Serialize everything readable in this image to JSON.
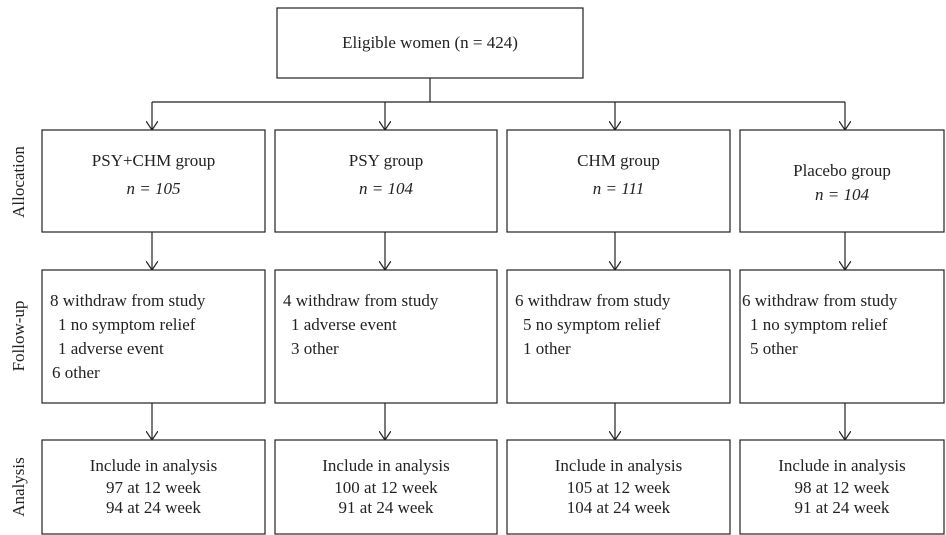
{
  "header": {
    "label": "Eligible women (n = 424)"
  },
  "stages": [
    "Allocation",
    "Follow-up",
    "Analysis"
  ],
  "groups": [
    {
      "name": "PSY+CHM group",
      "n": "n = 105",
      "followup": [
        "8 withdraw from study",
        "1 no symptom relief",
        "1 adverse event",
        "6 other"
      ],
      "analysis": [
        "Include in analysis",
        "97 at 12 week",
        "94 at 24 week"
      ]
    },
    {
      "name": "PSY group",
      "n": "n = 104",
      "followup": [
        "4 withdraw from study",
        "1 adverse event",
        "3 other"
      ],
      "analysis": [
        "Include in analysis",
        "100 at 12 week",
        "91 at 24 week"
      ]
    },
    {
      "name": "CHM group",
      "n": "n = 111",
      "followup": [
        "6 withdraw from study",
        "5 no symptom relief",
        "1 other"
      ],
      "analysis": [
        "Include in analysis",
        "105 at 12 week",
        "104 at 24 week"
      ]
    },
    {
      "name": "Placebo group",
      "n": "n = 104",
      "followup": [
        "6 withdraw from study",
        "1 no symptom relief",
        "5 other"
      ],
      "analysis": [
        "Include in analysis",
        "98 at 12 week",
        "91 at 24 week"
      ]
    }
  ]
}
